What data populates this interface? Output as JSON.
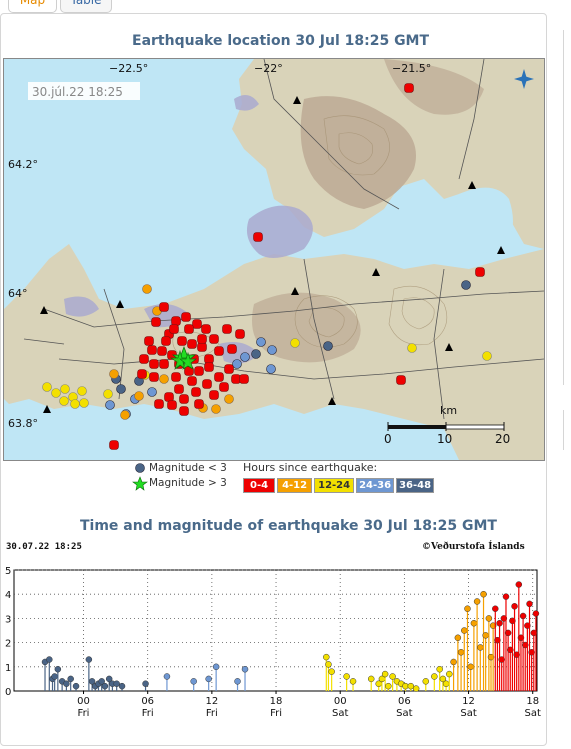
{
  "tabs": [
    {
      "label": "Map",
      "active": true
    },
    {
      "label": "Table",
      "active": false
    }
  ],
  "map": {
    "title": "Earthquake location   30 Jul 18:25 GMT",
    "timestamp": "30.júl.22  18:25",
    "lon_labels": [
      "−22.5°",
      "−22°",
      "−21.5°"
    ],
    "lat_labels": [
      "64.2°",
      "64°",
      "63.8°"
    ],
    "scale_unit": "km",
    "scale_ticks": [
      "0",
      "10",
      "20"
    ],
    "colors": {
      "sea": "#bfe6f5",
      "land": "#d9d3b9",
      "mountain": "#bca994",
      "lava": "#a9a9cf",
      "road": "#555555"
    }
  },
  "legend": {
    "mag_small": "Magnitude < 3",
    "mag_large": "Magnitude > 3",
    "hours_title": "Hours since earthquake:",
    "buckets": [
      {
        "label": "0-4",
        "color": "#ee0000"
      },
      {
        "label": "4-12",
        "color": "#f5a000"
      },
      {
        "label": "12-24",
        "color": "#f3e000"
      },
      {
        "label": "24-36",
        "color": "#6e97d2"
      },
      {
        "label": "36-48",
        "color": "#4a6486"
      }
    ]
  },
  "chart": {
    "title": "Time and magnitude of earthquake   30 Jul 18:25 GMT",
    "left_label": "30.07.22 18:25",
    "right_label": "©Veðurstofa Íslands",
    "y_ticks": [
      "0",
      "1",
      "2",
      "3",
      "4",
      "5"
    ],
    "x_ticks": [
      {
        "time": "00",
        "day": "Fri"
      },
      {
        "time": "06",
        "day": "Fri"
      },
      {
        "time": "12",
        "day": "Fri"
      },
      {
        "time": "18",
        "day": "Fri"
      },
      {
        "time": "00",
        "day": "Sat"
      },
      {
        "time": "06",
        "day": "Sat"
      },
      {
        "time": "12",
        "day": "Sat"
      },
      {
        "time": "18",
        "day": "Sat"
      }
    ]
  },
  "chart_data": {
    "type": "scatter",
    "title": "Time and magnitude of earthquake   30 Jul 18:25 GMT",
    "x_unit": "hours since 29 Jul 00:00",
    "xlim": [
      -6.5,
      42.4
    ],
    "ylim": [
      0,
      5
    ],
    "grid": true,
    "series": [
      {
        "name": "36-48",
        "color": "#4a6486",
        "x": [
          -3.6,
          -3.2,
          -2.9,
          -2.7,
          -2.4,
          -2.0,
          -1.6,
          -1.2,
          -0.7,
          0.5,
          0.8,
          1.1,
          1.4,
          1.7,
          2.0,
          2.4,
          2.7,
          3.1,
          3.6,
          5.8
        ],
        "y": [
          1.2,
          1.3,
          0.5,
          0.6,
          0.9,
          0.4,
          0.3,
          0.5,
          0.2,
          1.3,
          0.4,
          0.2,
          0.3,
          0.4,
          0.2,
          0.5,
          0.3,
          0.3,
          0.2,
          0.3
        ]
      },
      {
        "name": "24-36",
        "color": "#6e97d2",
        "x": [
          7.8,
          10.3,
          11.7,
          12.4,
          14.4,
          15.1
        ],
        "y": [
          0.6,
          0.4,
          0.5,
          1.0,
          0.4,
          0.9
        ]
      },
      {
        "name": "12-24",
        "color": "#f3e000",
        "x": [
          22.7,
          22.9,
          23.2,
          24.6,
          25.2,
          26.9,
          27.6,
          27.9,
          28.2,
          28.5,
          28.9,
          29.3,
          29.7,
          30.1,
          30.6,
          31.1,
          32.0,
          32.8,
          33.3,
          33.6,
          33.9,
          34.2
        ],
        "y": [
          1.4,
          1.1,
          0.8,
          0.6,
          0.4,
          0.5,
          0.3,
          0.5,
          0.7,
          0.2,
          0.6,
          0.4,
          0.3,
          0.2,
          0.2,
          0.1,
          0.4,
          0.6,
          0.9,
          0.5,
          0.3,
          0.7
        ]
      },
      {
        "name": "4-12",
        "color": "#f5a000",
        "x": [
          34.6,
          35.0,
          35.3,
          35.6,
          35.9,
          36.2,
          36.5,
          36.8,
          37.1,
          37.4,
          37.6,
          37.9,
          38.1,
          38.3
        ],
        "y": [
          1.2,
          2.2,
          1.6,
          2.5,
          3.4,
          1.0,
          2.8,
          3.7,
          1.8,
          4.0,
          2.3,
          3.0,
          1.4,
          2.7
        ]
      },
      {
        "name": "0-4",
        "color": "#ee0000",
        "x": [
          38.5,
          38.7,
          38.9,
          39.1,
          39.3,
          39.5,
          39.7,
          39.9,
          40.1,
          40.3,
          40.5,
          40.7,
          40.9,
          41.1,
          41.3,
          41.5,
          41.7,
          41.9,
          42.1,
          42.3
        ],
        "y": [
          3.4,
          2.1,
          2.8,
          1.3,
          3.0,
          3.9,
          2.4,
          1.7,
          2.9,
          3.5,
          1.5,
          4.4,
          2.2,
          3.1,
          1.9,
          2.7,
          3.6,
          1.6,
          2.4,
          3.2
        ]
      }
    ]
  }
}
